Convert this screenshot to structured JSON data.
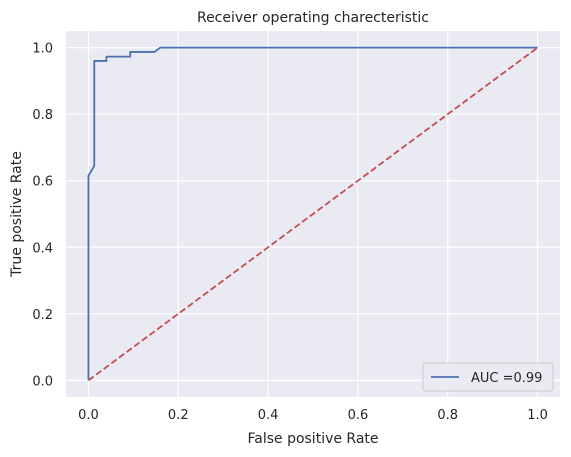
{
  "chart_data": {
    "type": "line",
    "title": "Receiver operating charecteristic",
    "xlabel": "False positive Rate",
    "ylabel": "True positive Rate",
    "xlim": [
      -0.05,
      1.05
    ],
    "ylim": [
      -0.05,
      1.05
    ],
    "xticks": [
      0.0,
      0.2,
      0.4,
      0.6,
      0.8,
      1.0
    ],
    "xtick_labels": [
      "0.0",
      "0.2",
      "0.4",
      "0.6",
      "0.8",
      "1.0"
    ],
    "yticks": [
      0.0,
      0.2,
      0.4,
      0.6,
      0.8,
      1.0
    ],
    "ytick_labels": [
      "0.0",
      "0.2",
      "0.4",
      "0.6",
      "0.8",
      "1.0"
    ],
    "grid": true,
    "legend_position": "lower-right",
    "series": [
      {
        "name": "AUC =0.99",
        "color": "#4c72b0",
        "style": "solid",
        "x": [
          0.0,
          0.0,
          0.0,
          0.013,
          0.013,
          0.013,
          0.04,
          0.04,
          0.093,
          0.093,
          0.147,
          0.16,
          0.16,
          1.0
        ],
        "y": [
          0.0,
          0.0,
          0.615,
          0.645,
          0.645,
          0.96,
          0.96,
          0.973,
          0.973,
          0.987,
          0.987,
          1.0,
          1.0,
          1.0
        ]
      },
      {
        "color": "#c44e52",
        "style": "dashed",
        "x": [
          0.0,
          1.0
        ],
        "y": [
          0.0,
          1.0
        ]
      }
    ]
  },
  "colors": {
    "plot_background": "#eaeaf2",
    "grid": "#ffffff"
  }
}
